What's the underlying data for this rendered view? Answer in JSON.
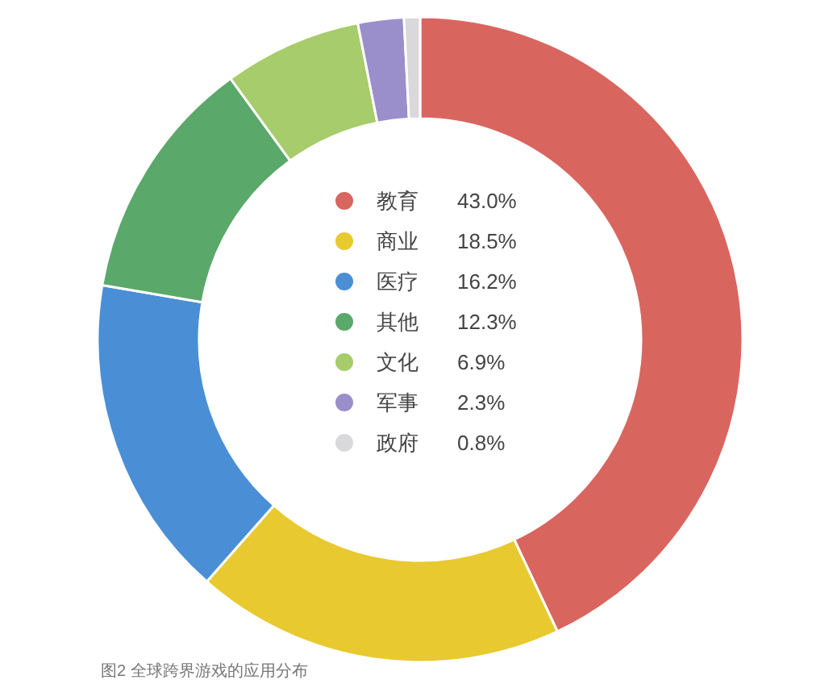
{
  "chart_data": {
    "type": "donut",
    "categories": [
      "教育",
      "商业",
      "医疗",
      "其他",
      "文化",
      "军事",
      "政府"
    ],
    "colors": [
      "#d9655f",
      "#e8c92f",
      "#4a8fd6",
      "#5aa86a",
      "#a6cc6b",
      "#9a8fca",
      "#d9d9dc"
    ],
    "values": [
      43.0,
      18.5,
      16.2,
      12.3,
      6.9,
      2.3,
      0.8
    ],
    "value_labels": [
      "43.0%",
      "18.5%",
      "16.2%",
      "12.3%",
      "6.9%",
      "2.3%",
      "0.8%"
    ],
    "legend": "center",
    "annotations": [
      "图2 全球跨界游戏的应用分布"
    ]
  }
}
